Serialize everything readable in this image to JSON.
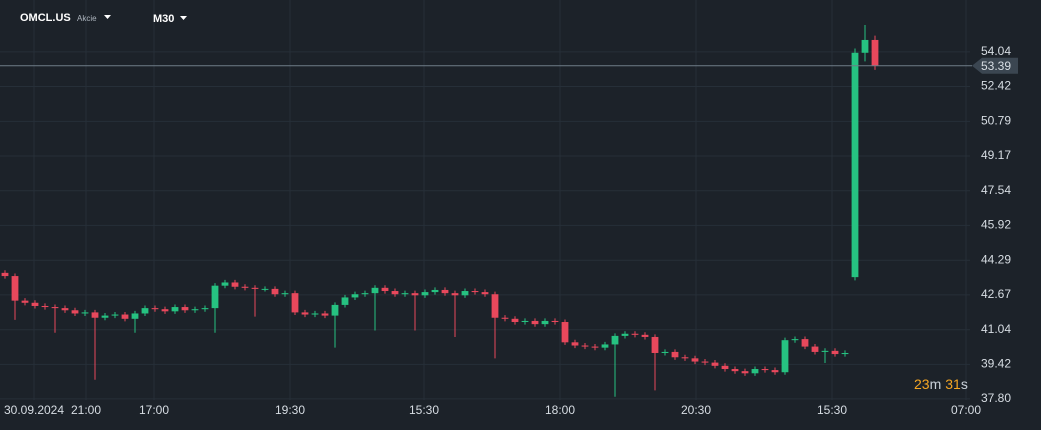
{
  "chart_data": {
    "type": "candlestick",
    "symbol": "OMCL.US",
    "instrument_type": "Akcie",
    "timeframe": "M30",
    "up_color": "#26c281",
    "down_color": "#e8485c",
    "grid": true,
    "xlim": [
      0,
      97
    ],
    "xticks": [
      {
        "value": 3.4,
        "label": "30.09.2024"
      },
      {
        "value": 8.6,
        "label": "21:00"
      },
      {
        "value": 15.4,
        "label": "17:00"
      },
      {
        "value": 29,
        "label": "19:30"
      },
      {
        "value": 42.4,
        "label": "15:30"
      },
      {
        "value": 56,
        "label": "18:00"
      },
      {
        "value": 69.6,
        "label": "20:30"
      },
      {
        "value": 83.2,
        "label": "15:30"
      },
      {
        "value": 96.6,
        "label": "07:00"
      }
    ],
    "ylim": [
      37.75,
      56.47
    ],
    "yticks": [
      {
        "value": 37.8,
        "label": "37.80"
      },
      39.42,
      41.04,
      42.67,
      44.29,
      45.92,
      47.54,
      49.17,
      50.79,
      52.42,
      54.04
    ],
    "last_price": 53.39,
    "countdown": [
      "23",
      "m",
      "31",
      "s"
    ],
    "x": [
      0.5,
      1.5,
      2.5,
      3.5,
      4.5,
      5.5,
      6.5,
      7.5,
      8.5,
      9.5,
      10.5,
      11.5,
      12.5,
      13.5,
      14.5,
      15.5,
      16.5,
      17.5,
      18.5,
      19.5,
      20.5,
      21.5,
      22.5,
      23.5,
      24.5,
      25.5,
      26.5,
      27.5,
      28.5,
      29.5,
      30.5,
      31.5,
      32.5,
      33.5,
      34.5,
      35.5,
      36.5,
      37.5,
      38.5,
      39.5,
      40.5,
      41.5,
      42.5,
      43.5,
      44.5,
      45.5,
      46.5,
      47.5,
      48.5,
      49.5,
      50.5,
      51.5,
      52.5,
      53.5,
      54.5,
      55.5,
      56.5,
      57.5,
      58.5,
      59.5,
      60.5,
      61.5,
      62.5,
      63.5,
      64.5,
      65.5,
      66.5,
      67.5,
      68.5,
      69.5,
      70.5,
      71.5,
      72.5,
      73.5,
      74.5,
      75.5,
      76.5,
      77.5,
      78.5,
      79.5,
      80.5,
      81.5,
      82.5,
      83.5,
      84.5,
      85.5,
      86.5,
      87.5
    ],
    "open": [
      43.7,
      43.55,
      42.4,
      42.3,
      42.15,
      42.1,
      42.05,
      41.95,
      41.8,
      41.85,
      41.6,
      41.7,
      41.75,
      41.55,
      41.8,
      42.05,
      42.0,
      41.9,
      42.1,
      41.95,
      42.0,
      42.05,
      43.1,
      43.25,
      43.05,
      43.0,
      42.95,
      42.95,
      42.7,
      42.75,
      41.85,
      41.75,
      41.8,
      41.7,
      42.2,
      42.55,
      42.7,
      42.75,
      43.0,
      42.85,
      42.7,
      42.75,
      42.65,
      42.8,
      42.9,
      42.75,
      42.65,
      42.85,
      42.8,
      42.7,
      41.6,
      41.55,
      41.4,
      41.45,
      41.3,
      41.45,
      41.4,
      40.45,
      40.3,
      40.25,
      40.2,
      40.35,
      40.75,
      40.85,
      40.8,
      40.7,
      39.95,
      40.0,
      39.75,
      39.7,
      39.55,
      39.5,
      39.35,
      39.2,
      39.1,
      39.0,
      39.2,
      39.15,
      39.05,
      40.55,
      40.6,
      40.25,
      40.0,
      40.05,
      39.9,
      43.5,
      54.0,
      54.6
    ],
    "high": [
      43.82,
      43.67,
      42.52,
      42.42,
      42.27,
      42.22,
      42.17,
      42.07,
      41.97,
      41.97,
      41.82,
      41.87,
      41.87,
      41.92,
      42.17,
      42.17,
      42.12,
      42.22,
      42.22,
      42.12,
      42.17,
      43.22,
      43.37,
      43.37,
      43.17,
      43.12,
      43.07,
      43.07,
      42.87,
      42.87,
      41.97,
      41.92,
      41.92,
      42.32,
      42.67,
      42.82,
      42.87,
      43.12,
      43.12,
      42.97,
      42.87,
      42.87,
      42.92,
      43.02,
      43.02,
      42.87,
      42.97,
      42.97,
      42.92,
      42.82,
      41.72,
      41.67,
      41.57,
      41.57,
      41.57,
      41.57,
      41.52,
      40.57,
      40.42,
      40.37,
      40.47,
      40.87,
      40.97,
      40.97,
      40.92,
      40.82,
      40.12,
      40.12,
      39.87,
      39.82,
      39.67,
      39.62,
      39.47,
      39.32,
      39.22,
      39.32,
      39.32,
      39.27,
      40.67,
      40.72,
      40.72,
      40.37,
      40.17,
      40.17,
      40.07,
      54.2,
      55.3,
      54.8
    ],
    "low": [
      43.43,
      41.5,
      42.18,
      42.03,
      41.98,
      40.9,
      41.83,
      41.68,
      41.68,
      38.7,
      41.48,
      41.58,
      41.43,
      40.9,
      41.68,
      41.88,
      41.78,
      41.78,
      41.83,
      41.83,
      41.88,
      40.9,
      42.98,
      42.93,
      42.88,
      41.65,
      42.83,
      42.58,
      42.58,
      41.73,
      41.63,
      41.63,
      41.58,
      40.2,
      42.08,
      42.43,
      42.58,
      41.0,
      42.73,
      42.58,
      42.58,
      41.0,
      42.53,
      42.68,
      42.63,
      40.7,
      42.53,
      42.68,
      42.58,
      39.7,
      41.43,
      41.28,
      41.28,
      41.18,
      41.18,
      41.28,
      40.33,
      40.18,
      40.13,
      40.08,
      40.08,
      37.9,
      40.63,
      40.68,
      40.58,
      38.2,
      39.83,
      39.63,
      39.58,
      39.43,
      39.38,
      39.23,
      39.08,
      38.98,
      38.88,
      38.88,
      39.03,
      38.93,
      38.93,
      40.43,
      40.13,
      39.88,
      39.48,
      39.78,
      39.78,
      43.35,
      53.6,
      53.2
    ],
    "close": [
      43.55,
      42.4,
      42.3,
      42.15,
      42.1,
      42.05,
      41.95,
      41.8,
      41.85,
      41.6,
      41.7,
      41.75,
      41.55,
      41.8,
      42.05,
      42.0,
      41.9,
      42.1,
      41.95,
      42.0,
      42.05,
      43.1,
      43.25,
      43.05,
      43.0,
      42.95,
      42.95,
      42.7,
      42.75,
      41.85,
      41.75,
      41.8,
      41.7,
      42.2,
      42.55,
      42.7,
      42.75,
      43.0,
      42.85,
      42.7,
      42.75,
      42.65,
      42.8,
      42.9,
      42.75,
      42.65,
      42.85,
      42.8,
      42.7,
      41.6,
      41.55,
      41.4,
      41.45,
      41.3,
      41.45,
      41.4,
      40.45,
      40.3,
      40.25,
      40.2,
      40.35,
      40.75,
      40.85,
      40.8,
      40.7,
      39.95,
      40.0,
      39.75,
      39.7,
      39.55,
      39.5,
      39.35,
      39.2,
      39.1,
      39.0,
      39.2,
      39.15,
      39.05,
      40.55,
      40.6,
      40.25,
      40.0,
      40.05,
      39.9,
      39.95,
      54.0,
      54.6,
      53.39
    ]
  }
}
